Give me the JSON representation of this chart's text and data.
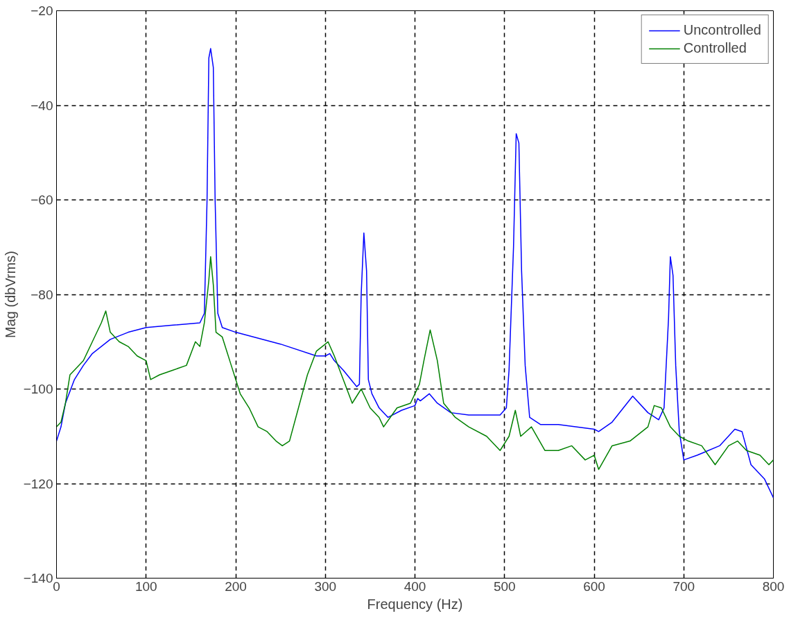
{
  "chart_data": {
    "type": "line",
    "xlabel": "Frequency (Hz)",
    "ylabel": "Mag (dbVrms)",
    "xlim": [
      0,
      800
    ],
    "xticks": [
      0,
      100,
      200,
      300,
      400,
      500,
      600,
      700,
      800
    ],
    "ylim": [
      -140,
      -20
    ],
    "yticks": [
      -140,
      -120,
      -100,
      -80,
      -60,
      -40,
      -20
    ],
    "grid": true,
    "legend": "top right",
    "marker": "none",
    "line_style": "solid",
    "series": [
      {
        "name": "Uncontrolled",
        "color": "#0000ff",
        "x": [
          0,
          5,
          10,
          20,
          30,
          40,
          60,
          80,
          100,
          130,
          160,
          165,
          168,
          170,
          172,
          175,
          177,
          180,
          185,
          200,
          250,
          290,
          300,
          305,
          310,
          320,
          335,
          338,
          340,
          343,
          346,
          348,
          352,
          360,
          370,
          385,
          400,
          403,
          406,
          416,
          425,
          440,
          460,
          495,
          502,
          505,
          510,
          513,
          516,
          519,
          523,
          528,
          540,
          560,
          600,
          605,
          620,
          643,
          660,
          672,
          678,
          683,
          685,
          688,
          691,
          695,
          700,
          715,
          740,
          757,
          765,
          775,
          790,
          800
        ],
        "values": [
          -111,
          -108,
          -103,
          -98,
          -95,
          -92.5,
          -89.5,
          -88,
          -87,
          -86.5,
          -86,
          -84,
          -60,
          -30,
          -28,
          -32,
          -60,
          -84,
          -87,
          -88,
          -90.5,
          -93,
          -93,
          -92.5,
          -94,
          -96,
          -99.5,
          -99,
          -80,
          -67,
          -75,
          -98,
          -101,
          -104,
          -106,
          -104.5,
          -103.5,
          -102,
          -102.5,
          -101,
          -103,
          -105,
          -105.5,
          -105.5,
          -104,
          -96,
          -70,
          -46,
          -48,
          -75,
          -95,
          -106,
          -107.5,
          -107.5,
          -108.5,
          -109,
          -107,
          -101.5,
          -105,
          -106.5,
          -104,
          -85,
          -72,
          -76,
          -95,
          -109,
          -115,
          -114,
          -112,
          -108.5,
          -109,
          -116,
          -119,
          -123
        ]
      },
      {
        "name": "Controlled",
        "color": "#008000",
        "x": [
          0,
          5,
          10,
          15,
          20,
          30,
          40,
          50,
          55,
          60,
          70,
          80,
          90,
          100,
          105,
          115,
          130,
          145,
          155,
          160,
          165,
          170,
          172,
          175,
          178,
          185,
          195,
          205,
          215,
          225,
          235,
          245,
          252,
          260,
          270,
          280,
          290,
          300,
          303,
          310,
          320,
          330,
          340,
          350,
          360,
          365,
          380,
          395,
          405,
          410,
          417,
          425,
          432,
          445,
          460,
          480,
          495,
          505,
          512,
          518,
          530,
          545,
          560,
          575,
          590,
          600,
          605,
          620,
          640,
          660,
          667,
          675,
          685,
          695,
          705,
          720,
          735,
          750,
          760,
          770,
          785,
          795,
          800
        ],
        "values": [
          -108,
          -107,
          -103,
          -97,
          -96,
          -94,
          -90,
          -86,
          -83.5,
          -88,
          -90,
          -91,
          -93,
          -94,
          -98,
          -97,
          -96,
          -95,
          -90,
          -91,
          -86,
          -77,
          -72,
          -78,
          -88,
          -89,
          -95,
          -101,
          -104,
          -108,
          -109,
          -111,
          -112,
          -111,
          -104,
          -97,
          -92,
          -90.5,
          -90,
          -93,
          -98,
          -103,
          -100,
          -104,
          -106,
          -108,
          -104,
          -103,
          -99,
          -94,
          -87.5,
          -94,
          -103,
          -106,
          -108,
          -110,
          -113,
          -110,
          -104.5,
          -110,
          -108,
          -113,
          -113,
          -112,
          -115,
          -114,
          -117,
          -112,
          -111,
          -108,
          -103.5,
          -104,
          -108,
          -110,
          -111,
          -112,
          -116,
          -112,
          -111,
          -113,
          -114,
          -116,
          -115
        ]
      }
    ]
  }
}
